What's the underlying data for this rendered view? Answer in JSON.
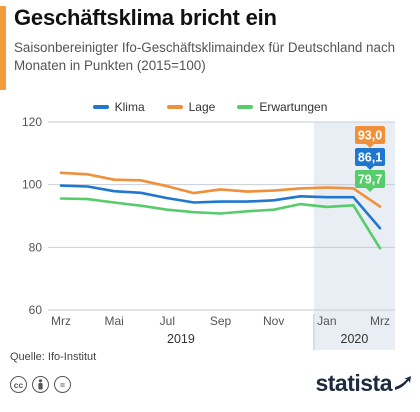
{
  "header": {
    "title": "Geschäftsklima bricht ein",
    "subtitle": "Saisonbereinigter Ifo-Geschäftsklimaindex für Deutschland nach Monaten in Punkten (2015=100)"
  },
  "colors": {
    "accent": "#f39c3c",
    "klima": "#1f77d0",
    "lage": "#f0903a",
    "erwartungen": "#56cc6a",
    "highlight": "#e9edf4"
  },
  "chart_data": {
    "type": "line",
    "title": "Geschäftsklima bricht ein",
    "subtitle": "Saisonbereinigter Ifo-Geschäftsklimaindex für Deutschland nach Monaten in Punkten (2015=100)",
    "x": [
      "Mrz 2019",
      "Apr 2019",
      "Mai 2019",
      "Jun 2019",
      "Jul 2019",
      "Aug 2019",
      "Sep 2019",
      "Okt 2019",
      "Nov 2019",
      "Dez 2019",
      "Jan 2020",
      "Feb 2020",
      "Mrz 2020"
    ],
    "x_tick_labels": [
      "Mrz",
      "Mai",
      "Jul",
      "Sep",
      "Nov",
      "Jan",
      "Mrz"
    ],
    "year_labels": [
      "2019",
      "2020"
    ],
    "ylim": [
      60,
      120
    ],
    "y_ticks": [
      60,
      80,
      100,
      120
    ],
    "grid": true,
    "legend": "top-center",
    "highlight_range": [
      "Jan 2020",
      "Mrz 2020"
    ],
    "series": [
      {
        "name": "Klima",
        "color": "#1f77d0",
        "values": [
          99.7,
          99.4,
          97.9,
          97.4,
          95.7,
          94.3,
          94.6,
          94.6,
          95.0,
          96.3,
          96.0,
          96.0,
          86.1
        ],
        "end_label": "86,1"
      },
      {
        "name": "Lage",
        "color": "#f0903a",
        "values": [
          103.8,
          103.3,
          101.6,
          101.4,
          99.5,
          97.3,
          98.5,
          97.8,
          98.1,
          98.8,
          99.1,
          98.8,
          93.0
        ],
        "end_label": "93,0"
      },
      {
        "name": "Erwartungen",
        "color": "#56cc6a",
        "values": [
          95.6,
          95.4,
          94.3,
          93.3,
          92.0,
          91.2,
          90.8,
          91.5,
          92.0,
          93.8,
          92.9,
          93.4,
          79.7
        ],
        "end_label": "79,7"
      }
    ]
  },
  "footer": {
    "source": "Quelle: Ifo-Institut",
    "brand": "statista",
    "license_icons": [
      "cc",
      "by",
      "="
    ]
  }
}
